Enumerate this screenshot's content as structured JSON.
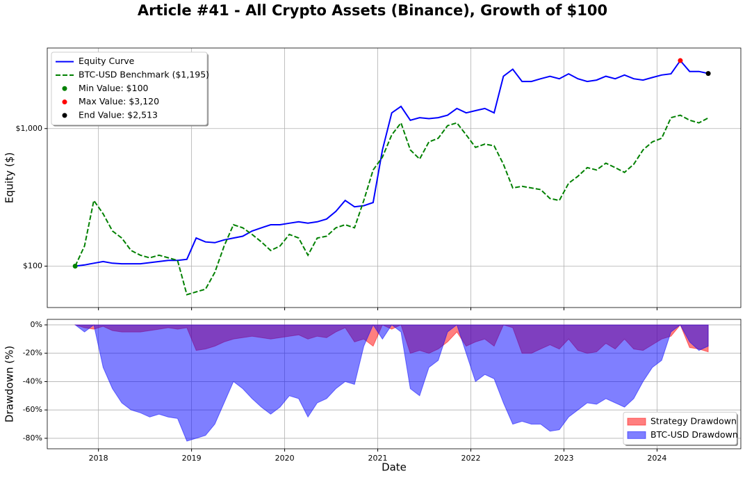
{
  "chart_data": [
    {
      "type": "line",
      "title": "Article #41 - All Crypto Assets (Binance), Growth of $100",
      "ylabel": "Equity ($)",
      "log_scale": true,
      "grid": true,
      "legend": "upper left",
      "xlim": [
        2017.45,
        2024.9
      ],
      "xticks": [
        2018,
        2019,
        2020,
        2021,
        2022,
        2023,
        2024
      ],
      "ylim": [
        50,
        3850
      ],
      "yticks": [
        {
          "value": 100,
          "label": "$100"
        },
        {
          "value": 1000,
          "label": "$1,000"
        }
      ],
      "x": [
        2017.75,
        2017.85,
        2017.95,
        2018.05,
        2018.15,
        2018.25,
        2018.35,
        2018.45,
        2018.55,
        2018.65,
        2018.75,
        2018.85,
        2018.95,
        2019.05,
        2019.15,
        2019.25,
        2019.35,
        2019.45,
        2019.55,
        2019.65,
        2019.75,
        2019.85,
        2019.95,
        2020.05,
        2020.15,
        2020.25,
        2020.35,
        2020.45,
        2020.55,
        2020.65,
        2020.75,
        2020.85,
        2020.95,
        2021.05,
        2021.15,
        2021.25,
        2021.35,
        2021.45,
        2021.55,
        2021.65,
        2021.75,
        2021.85,
        2021.95,
        2022.05,
        2022.15,
        2022.25,
        2022.35,
        2022.45,
        2022.55,
        2022.65,
        2022.75,
        2022.85,
        2022.95,
        2023.05,
        2023.15,
        2023.25,
        2023.35,
        2023.45,
        2023.55,
        2023.65,
        2023.75,
        2023.85,
        2023.95,
        2024.05,
        2024.15,
        2024.25,
        2024.35,
        2024.45,
        2024.55
      ],
      "series": [
        {
          "name": "Equity Curve",
          "color": "#0000ff",
          "dashed": false,
          "values": [
            100,
            102,
            105,
            108,
            105,
            104,
            104,
            104,
            106,
            108,
            110,
            110,
            112,
            160,
            150,
            148,
            155,
            160,
            165,
            180,
            190,
            200,
            200,
            205,
            210,
            205,
            210,
            220,
            250,
            300,
            270,
            275,
            290,
            700,
            1300,
            1450,
            1150,
            1200,
            1180,
            1200,
            1250,
            1400,
            1300,
            1350,
            1400,
            1300,
            2400,
            2700,
            2200,
            2200,
            2300,
            2400,
            2300,
            2500,
            2300,
            2200,
            2250,
            2400,
            2300,
            2450,
            2300,
            2250,
            2350,
            2450,
            2500,
            3120,
            2600,
            2600,
            2513
          ]
        },
        {
          "name": "BTC-USD Benchmark ($1,195)",
          "color": "#008000",
          "dashed": true,
          "values": [
            100,
            140,
            300,
            240,
            180,
            160,
            130,
            120,
            115,
            120,
            115,
            110,
            62,
            65,
            68,
            90,
            140,
            200,
            190,
            170,
            150,
            130,
            140,
            170,
            160,
            120,
            160,
            165,
            190,
            200,
            190,
            300,
            500,
            620,
            900,
            1100,
            700,
            600,
            800,
            850,
            1050,
            1100,
            900,
            730,
            770,
            750,
            550,
            370,
            380,
            370,
            360,
            310,
            300,
            400,
            450,
            520,
            500,
            560,
            520,
            480,
            550,
            700,
            800,
            850,
            1200,
            1250,
            1150,
            1100,
            1195
          ]
        }
      ],
      "points": [
        {
          "name": "Min Value: $100",
          "color": "#008000",
          "x": 2017.75,
          "y": 100
        },
        {
          "name": "Max Value: $3,120",
          "color": "#ff0000",
          "x": 2024.25,
          "y": 3120
        },
        {
          "name": "End Value: $2,513",
          "color": "#000000",
          "x": 2024.55,
          "y": 2513
        }
      ]
    },
    {
      "type": "area",
      "xlabel": "Date",
      "ylabel": "Drawdown (%)",
      "grid": true,
      "legend": "lower right",
      "xlim": [
        2017.45,
        2024.9
      ],
      "xticks": [
        2018,
        2019,
        2020,
        2021,
        2022,
        2023,
        2024
      ],
      "ylim": [
        -87.4,
        3.9
      ],
      "yticks": [
        {
          "value": 0,
          "label": "0%"
        },
        {
          "value": -20,
          "label": "-20%"
        },
        {
          "value": -40,
          "label": "-40%"
        },
        {
          "value": -60,
          "label": "-60%"
        },
        {
          "value": -80,
          "label": "-80%"
        }
      ],
      "x": [
        2017.75,
        2017.85,
        2017.95,
        2018.05,
        2018.15,
        2018.25,
        2018.35,
        2018.45,
        2018.55,
        2018.65,
        2018.75,
        2018.85,
        2018.95,
        2019.05,
        2019.15,
        2019.25,
        2019.35,
        2019.45,
        2019.55,
        2019.65,
        2019.75,
        2019.85,
        2019.95,
        2020.05,
        2020.15,
        2020.25,
        2020.35,
        2020.45,
        2020.55,
        2020.65,
        2020.75,
        2020.85,
        2020.95,
        2021.05,
        2021.15,
        2021.25,
        2021.35,
        2021.45,
        2021.55,
        2021.65,
        2021.75,
        2021.85,
        2021.95,
        2022.05,
        2022.15,
        2022.25,
        2022.35,
        2022.45,
        2022.55,
        2022.65,
        2022.75,
        2022.85,
        2022.95,
        2023.05,
        2023.15,
        2023.25,
        2023.35,
        2023.45,
        2023.55,
        2023.65,
        2023.75,
        2023.85,
        2023.95,
        2024.05,
        2024.15,
        2024.25,
        2024.35,
        2024.45,
        2024.55
      ],
      "series": [
        {
          "name": "Strategy Drawdown",
          "color": "#ff0000",
          "values": [
            0,
            -2,
            -3,
            -1,
            -4,
            -5,
            -5,
            -5,
            -4,
            -3,
            -2,
            -3,
            -2,
            -18,
            -17,
            -15,
            -12,
            -10,
            -9,
            -8,
            -9,
            -10,
            -9,
            -8,
            -7,
            -10,
            -8,
            -9,
            -5,
            -2,
            -12,
            -10,
            -15,
            0,
            -3,
            0,
            -20,
            -18,
            -20,
            -17,
            -12,
            -5,
            -15,
            -12,
            -10,
            -15,
            0,
            -2,
            -20,
            -20,
            -17,
            -14,
            -17,
            -10,
            -18,
            -20,
            -19,
            -13,
            -17,
            -10,
            -17,
            -18,
            -14,
            -10,
            -8,
            0,
            -16,
            -17,
            -19
          ]
        },
        {
          "name": "BTC-USD Drawdown",
          "color": "#0000ff",
          "values": [
            0,
            -5,
            0,
            -30,
            -45,
            -55,
            -60,
            -62,
            -65,
            -63,
            -65,
            -66,
            -82,
            -80,
            -78,
            -70,
            -55,
            -40,
            -45,
            -52,
            -58,
            -63,
            -58,
            -50,
            -52,
            -65,
            -55,
            -52,
            -45,
            -40,
            -42,
            -15,
            0,
            -10,
            0,
            -5,
            -45,
            -50,
            -30,
            -25,
            -5,
            0,
            -20,
            -40,
            -35,
            -38,
            -55,
            -70,
            -68,
            -70,
            -70,
            -75,
            -74,
            -65,
            -60,
            -55,
            -56,
            -52,
            -55,
            -58,
            -52,
            -40,
            -30,
            -25,
            -5,
            0,
            -12,
            -18,
            -15
          ]
        }
      ]
    }
  ]
}
